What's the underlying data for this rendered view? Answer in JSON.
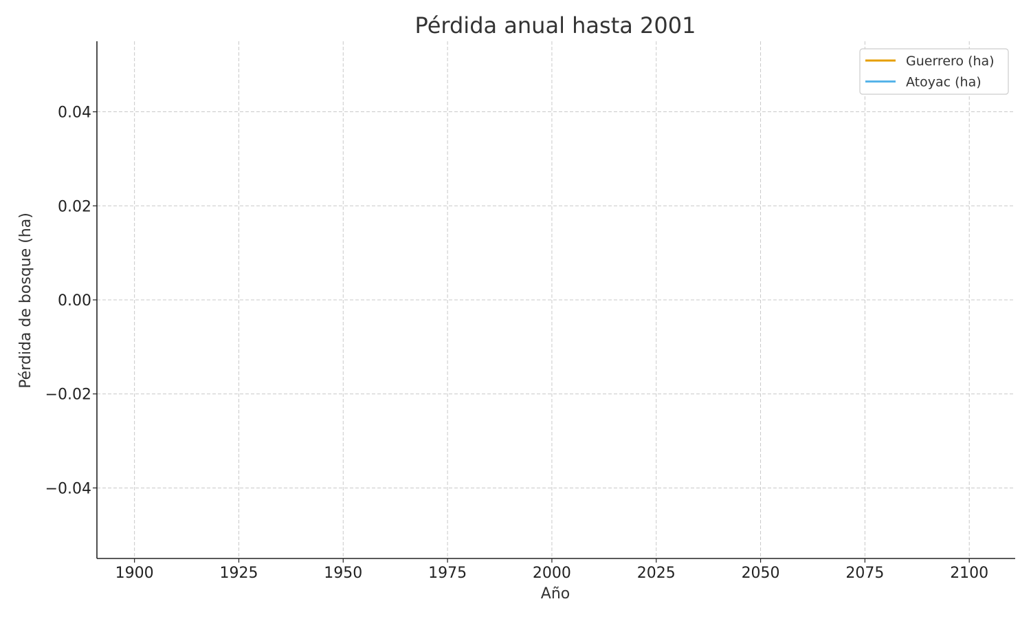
{
  "chart_data": {
    "type": "line",
    "title": "Pérdida anual hasta 2001",
    "xlabel": "Año",
    "ylabel": "Pérdida de bosque (ha)",
    "xlim": [
      1891,
      2111
    ],
    "ylim": [
      -0.055,
      0.055
    ],
    "x_ticks": [
      1900,
      1925,
      1950,
      1975,
      2000,
      2025,
      2050,
      2075,
      2100
    ],
    "x_tick_labels": [
      "1900",
      "1925",
      "1950",
      "1975",
      "2000",
      "2025",
      "2050",
      "2075",
      "2100"
    ],
    "y_ticks": [
      0.04,
      0.02,
      0.0,
      -0.02,
      -0.04
    ],
    "y_tick_labels": [
      "0.04",
      "0.02",
      "0.00",
      "−0.02",
      "−0.04"
    ],
    "grid": true,
    "legend_position": "top-right",
    "series": [
      {
        "name": "Guerrero (ha)",
        "color": "#E69F00",
        "x": [],
        "y": []
      },
      {
        "name": "Atoyac (ha)",
        "color": "#56B4E9",
        "x": [],
        "y": []
      }
    ]
  }
}
